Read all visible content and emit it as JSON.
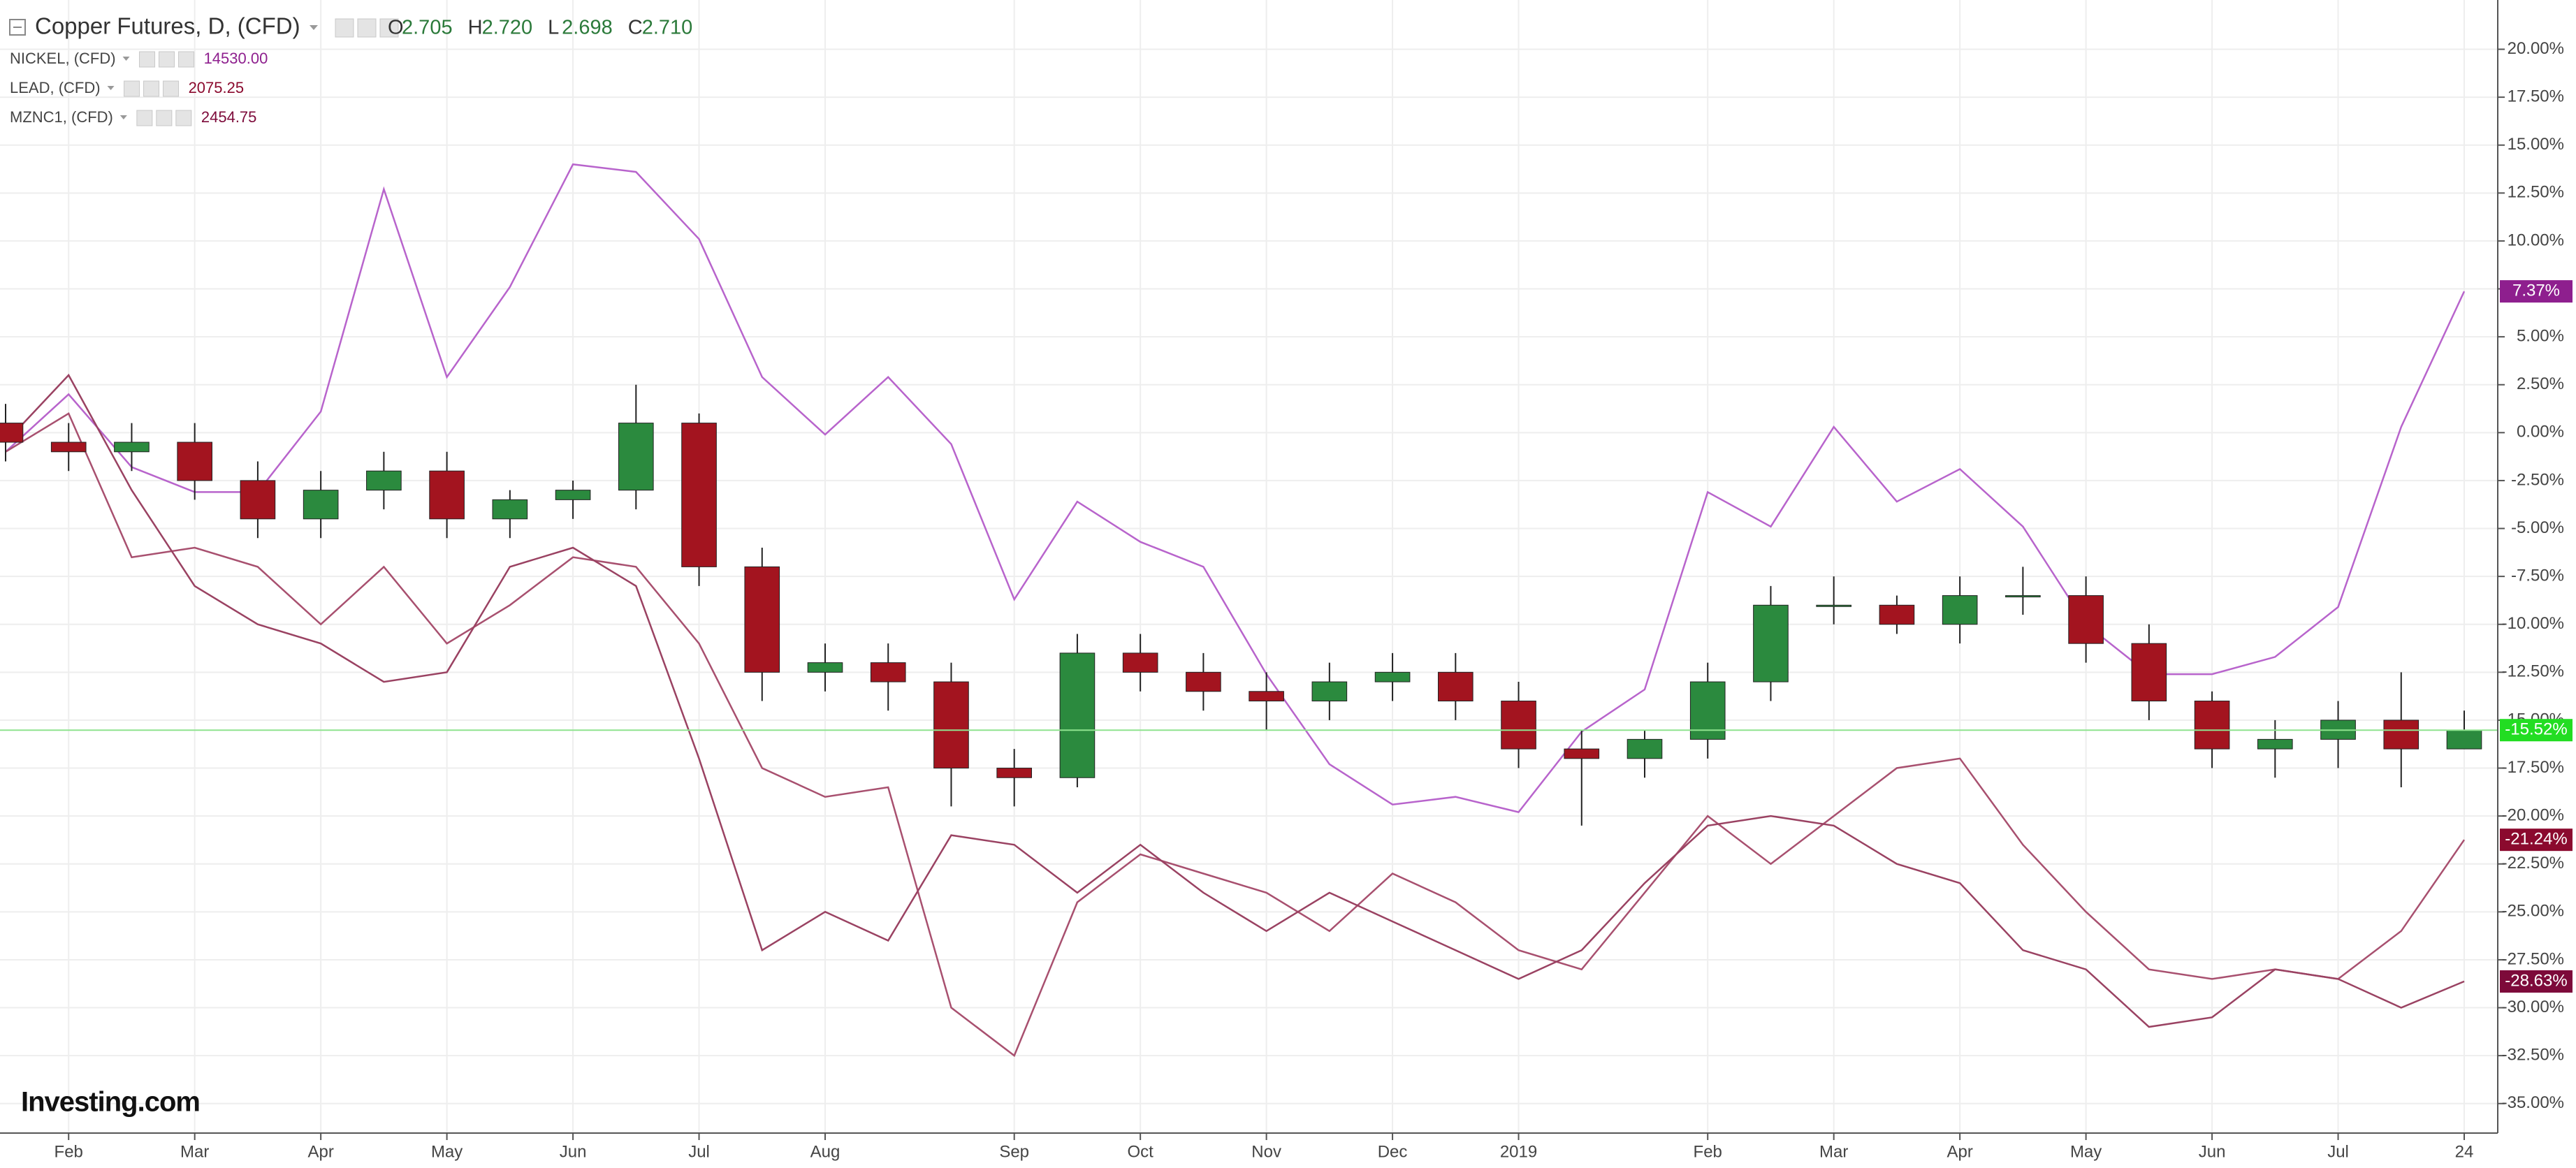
{
  "chart_data": {
    "type": "candlestick",
    "title": "Copper Futures, D, (CFD)",
    "ohlc_labels": [
      "O",
      "H",
      "L",
      "C"
    ],
    "ohlc_values": [
      "2.705",
      "2.720",
      "2.698",
      "2.710"
    ],
    "watermark": "Investing.com",
    "grid": true,
    "categories": [
      null,
      "Feb",
      null,
      "Mar",
      null,
      "Apr",
      null,
      "May",
      null,
      "Jun",
      null,
      "Jul",
      null,
      "Aug",
      null,
      null,
      "Sep",
      null,
      "Oct",
      null,
      "Nov",
      null,
      "Dec",
      null,
      "2019",
      null,
      null,
      "Feb",
      null,
      "Mar",
      null,
      "Apr",
      null,
      "May",
      null,
      "Jun",
      null,
      "Jul",
      null,
      "24"
    ],
    "ylim": [
      -36.54,
      22.57
    ],
    "yticks": [
      {
        "value": 20,
        "label": "20.00%"
      },
      {
        "value": 17.5,
        "label": "17.50%"
      },
      {
        "value": 15,
        "label": "15.00%"
      },
      {
        "value": 12.5,
        "label": "12.50%"
      },
      {
        "value": 10,
        "label": "10.00%"
      },
      {
        "value": 7.5,
        "label": "7.50%"
      },
      {
        "value": 5,
        "label": "5.00%"
      },
      {
        "value": 2.5,
        "label": "2.50%"
      },
      {
        "value": 0,
        "label": "0.00%"
      },
      {
        "value": -2.5,
        "label": "-2.50%"
      },
      {
        "value": -5,
        "label": "-5.00%"
      },
      {
        "value": -7.5,
        "label": "-7.50%"
      },
      {
        "value": -10,
        "label": "-10.00%"
      },
      {
        "value": -12.5,
        "label": "-12.50%"
      },
      {
        "value": -15,
        "label": "-15.00%"
      },
      {
        "value": -17.5,
        "label": "-17.50%"
      },
      {
        "value": -20,
        "label": "-20.00%"
      },
      {
        "value": -22.5,
        "label": "-22.50%"
      },
      {
        "value": -25,
        "label": "-25.00%"
      },
      {
        "value": -27.5,
        "label": "-27.50%"
      },
      {
        "value": -30,
        "label": "-30.00%"
      },
      {
        "value": -32.5,
        "label": "-32.50%"
      },
      {
        "value": -35,
        "label": "-35.00%"
      }
    ],
    "candles": {
      "up_color": "#2b8a3e",
      "down_color": "#a3141f",
      "last_color": "#22dd22",
      "last_line_color": "#8fe38f",
      "last_label": "-15.52%",
      "open": [
        0.5,
        -0.5,
        -1,
        -0.5,
        -2.5,
        -4.5,
        -3,
        -2,
        -4.5,
        -3.5,
        -3,
        0.5,
        -7,
        -12.5,
        -12,
        -13,
        -17.5,
        -18,
        -11.5,
        -12.5,
        -13.5,
        -14,
        -13,
        -12.5,
        -14,
        -16.5,
        -17,
        -16,
        -13,
        -9,
        -9,
        -10,
        -8.5,
        -8.5,
        -11,
        -14,
        -16.5,
        -16,
        -15,
        -16.5
      ],
      "high": [
        1.5,
        0.5,
        0.5,
        0.5,
        -1.5,
        -2,
        -1,
        -1,
        -3,
        -2.5,
        2.5,
        1,
        -6,
        -11,
        -11,
        -12,
        -16.5,
        -10.5,
        -10.5,
        -11.5,
        -12.5,
        -12,
        -11.5,
        -11.5,
        -13,
        -15.5,
        -15.5,
        -12,
        -8,
        -7.5,
        -8.5,
        -7.5,
        -7,
        -7.5,
        -10,
        -13.5,
        -15,
        -14,
        -12.5,
        -14.5
      ],
      "low": [
        -1.5,
        -2,
        -2,
        -3.5,
        -5.5,
        -5.5,
        -4,
        -5.5,
        -5.5,
        -4.5,
        -4,
        -8,
        -14,
        -13.5,
        -14.5,
        -19.5,
        -19.5,
        -18.5,
        -13.5,
        -14.5,
        -15.5,
        -15,
        -14,
        -15,
        -17.5,
        -20.5,
        -18,
        -17,
        -14,
        -10,
        -10.5,
        -11,
        -9.5,
        -12,
        -15,
        -17.5,
        -18,
        -17.5,
        -18.5,
        -16.5
      ],
      "close": [
        -0.5,
        -1,
        -0.5,
        -2.5,
        -4.5,
        -3,
        -2,
        -4.5,
        -3.5,
        -3,
        0.5,
        -7,
        -12.5,
        -12,
        -13,
        -17.5,
        -18,
        -11.5,
        -12.5,
        -13.5,
        -14,
        -13,
        -12.5,
        -14,
        -16.5,
        -17,
        -16,
        -13,
        -9,
        -9,
        -10,
        -8.5,
        -8.5,
        -11,
        -14,
        -16.5,
        -16,
        -15,
        -16.5,
        -15.52
      ]
    },
    "series": [
      {
        "name": "NICKEL, (CFD)",
        "legend_value": "14530.00",
        "color": "#b864cc",
        "badge_color": "#8e1f8e",
        "last_label": "7.37%",
        "values": [
          -1,
          2,
          -1.8,
          -3.1,
          -3.1,
          1.1,
          12.7,
          2.9,
          7.6,
          14,
          13.6,
          10.1,
          2.9,
          -0.1,
          2.9,
          -0.6,
          -8.7,
          -3.6,
          -5.7,
          -7,
          -12.6,
          -17.3,
          -19.4,
          -19,
          -19.8,
          -15.6,
          -13.4,
          -3.1,
          -4.9,
          0.3,
          -3.6,
          -1.9,
          -4.9,
          -10,
          -12.6,
          -12.6,
          -11.7,
          -9.1,
          0.3,
          7.37
        ]
      },
      {
        "name": "LEAD, (CFD)",
        "legend_value": "2075.25",
        "color": "#a8506f",
        "badge_color": "#8b0a2e",
        "last_label": "-21.24%",
        "values": [
          -1,
          1,
          -6.5,
          -6,
          -7,
          -10,
          -7,
          -11,
          -9,
          -6.5,
          -7,
          -11,
          -17.5,
          -19,
          -18.5,
          -30,
          -32.5,
          -24.5,
          -22,
          -23,
          -24,
          -26,
          -23,
          -24.5,
          -27,
          -28,
          -24,
          -20,
          -22.5,
          -20,
          -17.5,
          -17,
          -21.5,
          -25,
          -28,
          -28.5,
          -28,
          -28.5,
          -26,
          -21.24
        ]
      },
      {
        "name": "MZNC1, (CFD)",
        "legend_value": "2454.75",
        "color": "#9a4262",
        "badge_color": "#7d0a3a",
        "last_label": "-28.63%",
        "values": [
          -0.5,
          3,
          -3,
          -8,
          -10,
          -11,
          -13,
          -12.5,
          -7,
          -6,
          -8,
          -17,
          -27,
          -25,
          -26.5,
          -21,
          -21.5,
          -24,
          -21.5,
          -24,
          -26,
          -24,
          -25.5,
          -27,
          -28.5,
          -27,
          -23.5,
          -20.5,
          -20,
          -20.5,
          -22.5,
          -23.5,
          -27,
          -28,
          -31,
          -30.5,
          -28,
          -28.5,
          -30,
          -28.63
        ]
      }
    ]
  }
}
